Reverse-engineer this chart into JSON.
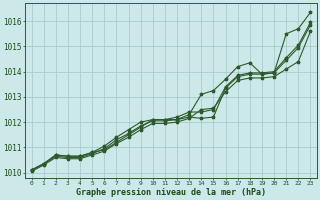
{
  "background_color": "#cce8e8",
  "grid_color": "#aacccc",
  "line_color": "#2d5a2d",
  "marker": "*",
  "title": "Graphe pression niveau de la mer (hPa)",
  "xlabel_color": "#1a4d1a",
  "xlim": [
    -0.5,
    23.5
  ],
  "ylim": [
    1009.8,
    1016.7
  ],
  "yticks": [
    1010,
    1011,
    1012,
    1013,
    1014,
    1015,
    1016
  ],
  "xticks": [
    0,
    1,
    2,
    3,
    4,
    5,
    6,
    7,
    8,
    9,
    10,
    11,
    12,
    13,
    14,
    15,
    16,
    17,
    18,
    19,
    20,
    21,
    22,
    23
  ],
  "series": [
    [
      1010.1,
      1010.35,
      1010.7,
      1010.65,
      1010.65,
      1010.8,
      1010.9,
      1011.2,
      1011.5,
      1011.8,
      1012.1,
      1012.1,
      1012.1,
      1012.2,
      1012.15,
      1012.2,
      1013.35,
      1013.8,
      1013.9,
      1013.9,
      1013.95,
      1015.5,
      1015.7,
      1016.35
    ],
    [
      1010.1,
      1010.35,
      1010.7,
      1010.65,
      1010.65,
      1010.8,
      1011.05,
      1011.4,
      1011.7,
      1012.0,
      1012.1,
      1012.1,
      1012.2,
      1012.4,
      1012.4,
      1012.5,
      1013.4,
      1013.85,
      1013.95,
      1013.95,
      1014.0,
      1014.55,
      1015.05,
      1015.95
    ],
    [
      1010.1,
      1010.35,
      1010.65,
      1010.6,
      1010.6,
      1010.75,
      1010.95,
      1011.3,
      1011.55,
      1011.85,
      1012.05,
      1012.05,
      1012.1,
      1012.3,
      1013.1,
      1013.25,
      1013.7,
      1014.2,
      1014.35,
      1013.9,
      1013.95,
      1014.45,
      1014.95,
      1015.85
    ],
    [
      1010.05,
      1010.3,
      1010.6,
      1010.55,
      1010.55,
      1010.7,
      1010.85,
      1011.15,
      1011.4,
      1011.7,
      1011.95,
      1011.95,
      1012.0,
      1012.15,
      1012.5,
      1012.55,
      1013.2,
      1013.65,
      1013.75,
      1013.75,
      1013.8,
      1014.1,
      1014.4,
      1015.6
    ]
  ]
}
